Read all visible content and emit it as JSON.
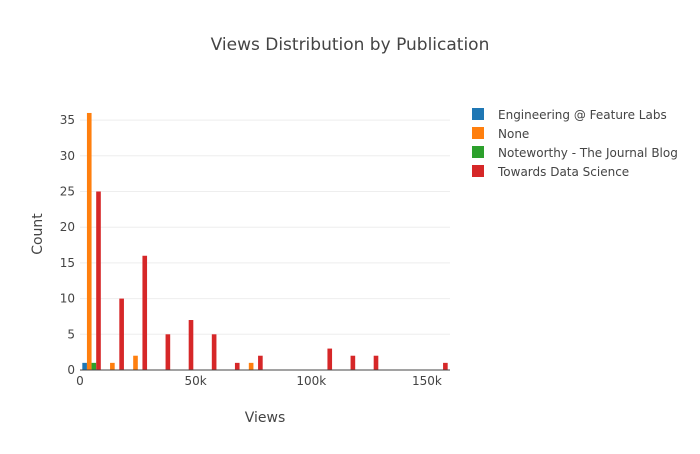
{
  "chart_data": {
    "type": "bar",
    "title": "Views Distribution by Publication",
    "xlabel": "Views",
    "ylabel": "Count",
    "xlim": [
      0,
      160000
    ],
    "ylim": [
      0,
      37
    ],
    "bin_width": 10000,
    "grid": true,
    "legend_position": "top-right",
    "x_ticks": [
      0,
      50000,
      100000,
      150000
    ],
    "x_tick_labels": [
      "0",
      "50k",
      "100k",
      "150k"
    ],
    "y_ticks": [
      0,
      5,
      10,
      15,
      20,
      25,
      30,
      35
    ],
    "y_tick_labels": [
      "0",
      "5",
      "10",
      "15",
      "20",
      "25",
      "30",
      "35"
    ],
    "bin_starts": [
      0,
      10000,
      20000,
      30000,
      40000,
      50000,
      60000,
      70000,
      80000,
      90000,
      100000,
      110000,
      120000,
      130000,
      140000,
      150000
    ],
    "series": [
      {
        "name": "Engineering @ Feature Labs",
        "color": "#1f77b4",
        "values": [
          1,
          0,
          0,
          0,
          0,
          0,
          0,
          0,
          0,
          0,
          0,
          0,
          0,
          0,
          0,
          0
        ]
      },
      {
        "name": "None",
        "color": "#ff7f0e",
        "values": [
          36,
          1,
          2,
          0,
          0,
          0,
          0,
          1,
          0,
          0,
          0,
          0,
          0,
          0,
          0,
          0
        ]
      },
      {
        "name": "Noteworthy - The Journal Blog",
        "color": "#2ca02c",
        "values": [
          1,
          0,
          0,
          0,
          0,
          0,
          0,
          0,
          0,
          0,
          0,
          0,
          0,
          0,
          0,
          0
        ]
      },
      {
        "name": "Towards Data Science",
        "color": "#d62728",
        "values": [
          25,
          10,
          16,
          5,
          7,
          5,
          1,
          2,
          0,
          0,
          3,
          2,
          2,
          0,
          0,
          1
        ]
      }
    ]
  }
}
